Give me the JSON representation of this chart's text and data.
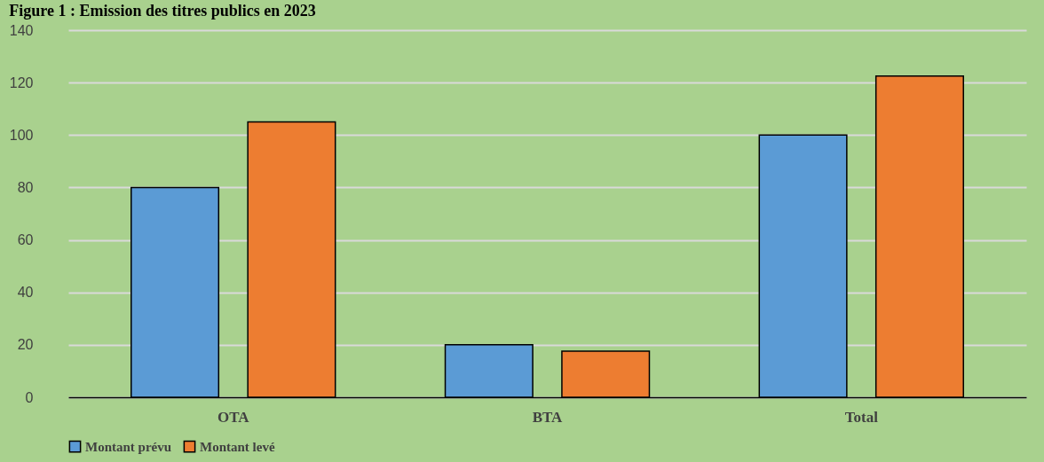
{
  "chart_data": {
    "type": "bar",
    "title": "Figure 1 : Emission des titres publics en 2023",
    "categories": [
      "OTA",
      "BTA",
      "Total"
    ],
    "series": [
      {
        "name": "Montant prévu",
        "color": "#5b9bd5",
        "values": [
          80,
          20,
          100
        ]
      },
      {
        "name": "Montant levé",
        "color": "#ed7d31",
        "values": [
          105,
          17.6,
          122.5
        ]
      }
    ],
    "ylim": [
      0,
      140
    ],
    "yticks": [
      0,
      20,
      40,
      60,
      80,
      100,
      120,
      140
    ],
    "grid": "y",
    "legend": "bottom"
  }
}
